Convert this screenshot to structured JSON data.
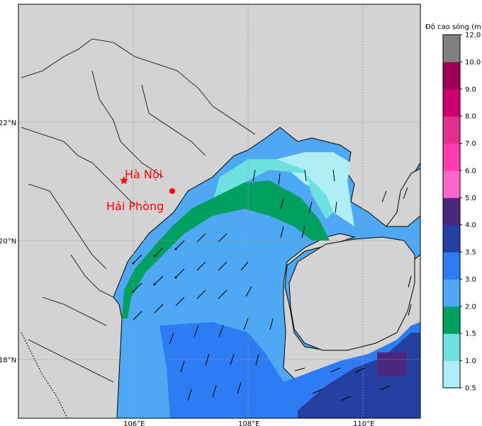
{
  "map": {
    "lat_labels": [
      "22°N",
      "20°N",
      "18°N"
    ],
    "lon_labels": [
      "106°E",
      "108°E",
      "110°E"
    ]
  },
  "cities": [
    {
      "name": "Hà Nội",
      "marker": "star",
      "color": "#ff0000"
    },
    {
      "name": "Hải Phòng",
      "marker": "circle",
      "color": "#ff0000"
    }
  ],
  "colorbar": {
    "title": "Độ cao sóng (m)",
    "ticks": [
      "0.5",
      "1.0",
      "1.5",
      "2.0",
      "3.0",
      "3.5",
      "4.0",
      "5.0",
      "6.0",
      "7.0",
      "8.0",
      "9.0",
      "10.0",
      "12.0"
    ],
    "colors": [
      "#aeeef4",
      "#6ee0e0",
      "#00a060",
      "#4ea8f4",
      "#2e7cf4",
      "#2440a0",
      "#4a2880",
      "#ff66cc",
      "#ff3bb0",
      "#e0308c",
      "#cc0070",
      "#9c0050",
      "#808080"
    ]
  },
  "colors": {
    "land": "#d3d3d3",
    "coast": "#000000"
  }
}
